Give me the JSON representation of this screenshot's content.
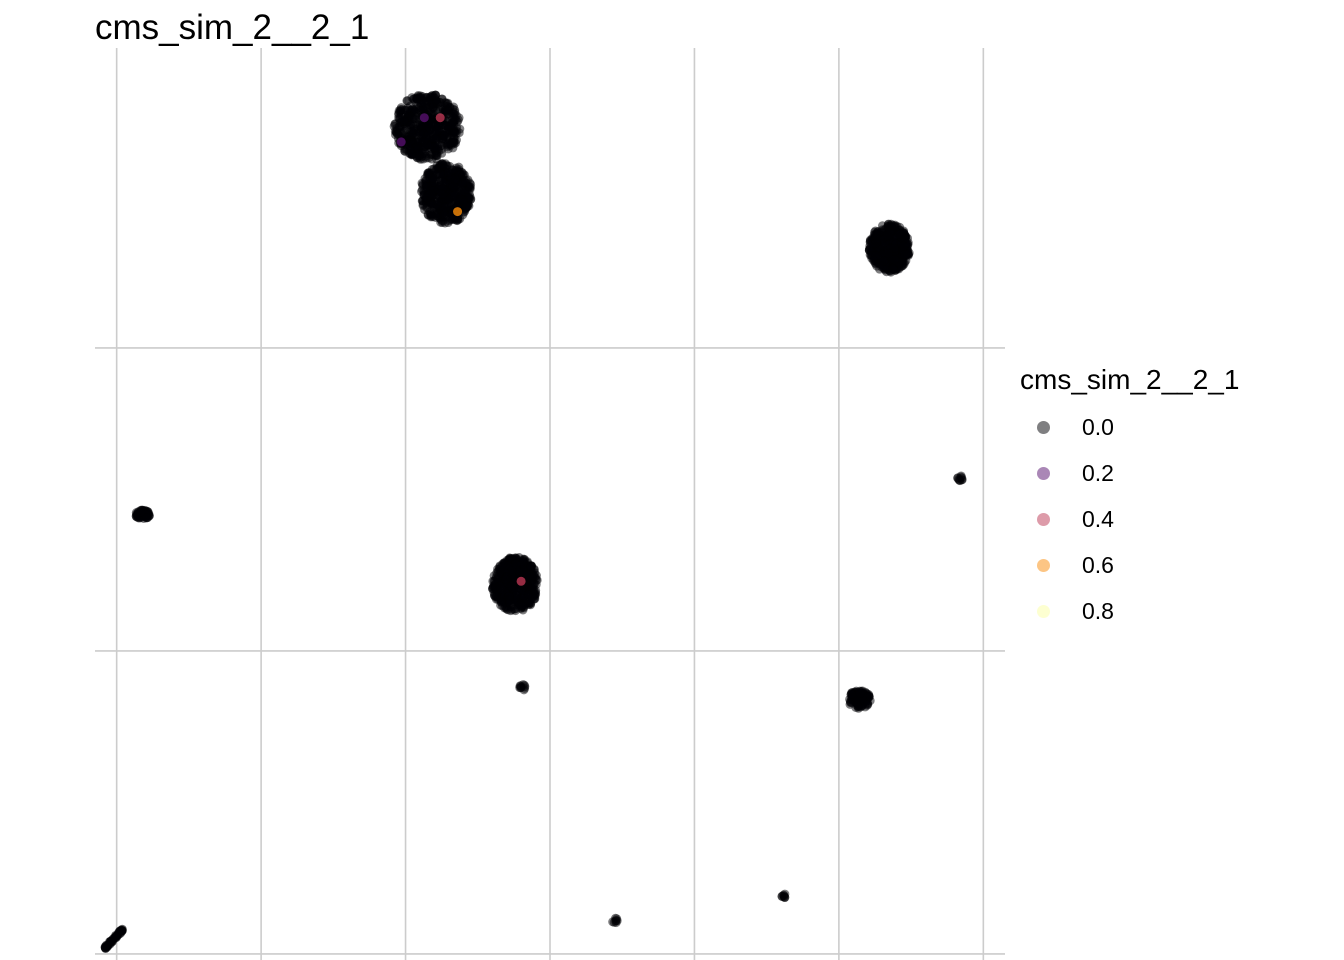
{
  "chart_data": {
    "type": "scatter",
    "title": "cms_sim_2__2_1",
    "xlabel": "",
    "ylabel": "",
    "grid": true,
    "axes_ticks_shown": false,
    "legend_position": "right",
    "legend": {
      "title": "cms_sim_2__2_1",
      "entries": [
        {
          "label": "0.0",
          "color": "#000004"
        },
        {
          "label": "0.2",
          "color": "#56106E"
        },
        {
          "label": "0.4",
          "color": "#BB3754"
        },
        {
          "label": "0.6",
          "color": "#F98C0A"
        },
        {
          "label": "0.8",
          "color": "#FCFFA4"
        }
      ]
    },
    "point_alpha": 0.5,
    "x_grid": [
      0,
      1,
      2,
      3,
      4,
      5,
      6
    ],
    "y_grid": [
      0,
      1,
      2
    ],
    "xlim": [
      -0.15,
      6.15
    ],
    "ylim": [
      -0.02,
      2.99
    ],
    "clusters": [
      {
        "x": 2.15,
        "y": 2.73,
        "rx": 0.23,
        "ry": 0.11,
        "n": 500,
        "value": 0.0
      },
      {
        "x": 2.28,
        "y": 2.51,
        "rx": 0.18,
        "ry": 0.1,
        "n": 450,
        "value": 0.0
      },
      {
        "x": 5.35,
        "y": 2.33,
        "rx": 0.14,
        "ry": 0.08,
        "n": 380,
        "value": 0.0
      },
      {
        "x": 0.18,
        "y": 1.45,
        "rx": 0.05,
        "ry": 0.015,
        "n": 60,
        "value": 0.0
      },
      {
        "x": 2.76,
        "y": 1.22,
        "rx": 0.16,
        "ry": 0.09,
        "n": 420,
        "value": 0.0
      },
      {
        "x": 5.84,
        "y": 1.57,
        "rx": 0.02,
        "ry": 0.01,
        "n": 10,
        "value": 0.0
      },
      {
        "x": 2.81,
        "y": 0.88,
        "rx": 0.02,
        "ry": 0.01,
        "n": 10,
        "value": 0.0
      },
      {
        "x": 5.14,
        "y": 0.84,
        "rx": 0.08,
        "ry": 0.03,
        "n": 100,
        "value": 0.0
      },
      {
        "x": -0.02,
        "y": 0.05,
        "rx": 0.06,
        "ry": 0.03,
        "n": 50,
        "value": 0.0,
        "elongated": true
      },
      {
        "x": 3.45,
        "y": 0.11,
        "rx": 0.02,
        "ry": 0.008,
        "n": 8,
        "value": 0.0
      },
      {
        "x": 4.62,
        "y": 0.19,
        "rx": 0.02,
        "ry": 0.008,
        "n": 8,
        "value": 0.0
      }
    ],
    "highlight_points": [
      {
        "x": 2.24,
        "y": 2.76,
        "value": 0.4
      },
      {
        "x": 2.13,
        "y": 2.76,
        "value": 0.2
      },
      {
        "x": 1.97,
        "y": 2.68,
        "value": 0.2
      },
      {
        "x": 2.36,
        "y": 2.45,
        "value": 0.6
      },
      {
        "x": 2.8,
        "y": 1.23,
        "value": 0.4
      }
    ]
  }
}
